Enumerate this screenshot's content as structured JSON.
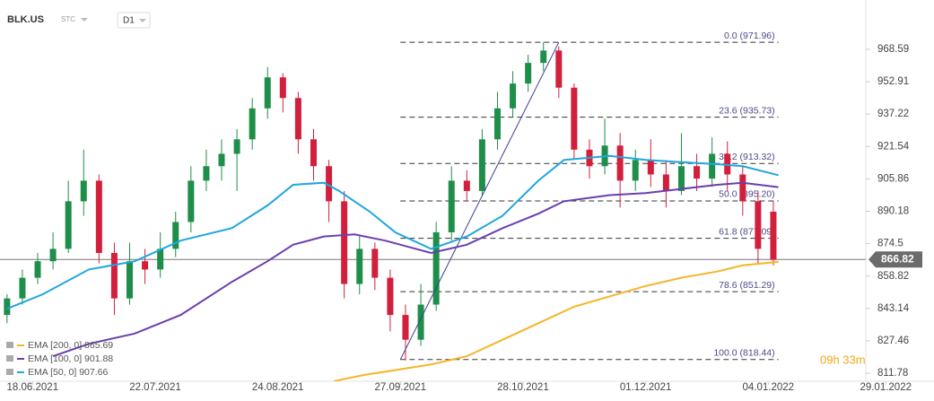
{
  "chart_data": {
    "type": "candlestick",
    "symbol": "BLK.US",
    "instrument_type": "STC",
    "timeframe": "D1",
    "timer": "09h 33m",
    "xlim": [
      -0.5,
      176
    ],
    "ylim": [
      807.9,
      988.1
    ],
    "yticks": [
      811.78,
      827.46,
      843.14,
      858.82,
      874.5,
      890.18,
      905.86,
      921.54,
      937.22,
      952.91,
      968.59
    ],
    "xticks": [
      {
        "value": 5,
        "label": "18.06.2021"
      },
      {
        "value": 29,
        "label": "22.07.2021"
      },
      {
        "value": 53,
        "label": "24.08.2021"
      },
      {
        "value": 77,
        "label": "27.09.2021"
      },
      {
        "value": 101,
        "label": "28.10.2021"
      },
      {
        "value": 125,
        "label": "01.12.2021"
      },
      {
        "value": 149,
        "label": "04.01.2022"
      },
      {
        "value": 172,
        "label": "29.01.2022"
      }
    ],
    "last_price": 866.82,
    "up_color": "#1e8e4a",
    "down_color": "#d21f3c",
    "candles": {
      "x": [
        0,
        3,
        6,
        9,
        12,
        15,
        18,
        21,
        24,
        27,
        30,
        33,
        36,
        39,
        42,
        45,
        48,
        51,
        54,
        57,
        60,
        63,
        66,
        69,
        72,
        75,
        78,
        81,
        84,
        87,
        90,
        93,
        96,
        99,
        102,
        105,
        108,
        111,
        114,
        117,
        120,
        123,
        126,
        129,
        132,
        135,
        138,
        141,
        144,
        147,
        150
      ],
      "open": [
        840,
        848,
        858,
        866,
        872,
        895,
        905,
        870,
        848,
        866,
        862,
        872,
        885,
        905,
        912,
        918,
        925,
        940,
        955,
        945,
        925,
        912,
        895,
        855,
        872,
        858,
        840,
        828,
        845,
        880,
        905,
        900,
        925,
        940,
        952,
        962,
        968,
        950,
        920,
        912,
        922,
        905,
        915,
        908,
        900,
        912,
        906,
        918,
        908,
        895,
        890
      ],
      "high": [
        850,
        862,
        870,
        880,
        905,
        920,
        908,
        875,
        875,
        872,
        880,
        890,
        912,
        920,
        925,
        930,
        945,
        960,
        957,
        948,
        930,
        915,
        900,
        878,
        875,
        862,
        845,
        855,
        885,
        912,
        910,
        930,
        948,
        958,
        966,
        972,
        970,
        952,
        925,
        935,
        928,
        920,
        925,
        915,
        928,
        918,
        926,
        924,
        912,
        900,
        895
      ],
      "low": [
        836,
        845,
        855,
        862,
        870,
        888,
        865,
        840,
        845,
        855,
        858,
        868,
        880,
        900,
        905,
        900,
        920,
        935,
        938,
        918,
        905,
        885,
        848,
        850,
        852,
        832,
        818,
        825,
        842,
        876,
        895,
        898,
        920,
        936,
        948,
        958,
        945,
        915,
        906,
        908,
        892,
        900,
        902,
        892,
        898,
        900,
        902,
        900,
        888,
        865,
        864
      ],
      "close": [
        848,
        858,
        866,
        872,
        895,
        905,
        870,
        848,
        866,
        862,
        872,
        885,
        905,
        912,
        918,
        925,
        940,
        955,
        945,
        925,
        912,
        895,
        855,
        872,
        858,
        840,
        828,
        845,
        880,
        905,
        900,
        925,
        940,
        952,
        962,
        968,
        950,
        920,
        912,
        922,
        905,
        915,
        908,
        900,
        912,
        906,
        918,
        908,
        895,
        872,
        866.82
      ]
    },
    "series": [
      {
        "name": "EMA [200, 0] 865.69",
        "color": "#f5b526",
        "x": [
          64,
          70,
          83,
          90,
          97,
          104,
          111,
          118,
          125,
          132,
          139,
          144,
          151
        ],
        "values": [
          808,
          811,
          816,
          820,
          828,
          836,
          844,
          849,
          854,
          858,
          861,
          864,
          865.69
        ]
      },
      {
        "name": "EMA [100, 0] 901.88",
        "color": "#6a3fb0",
        "x": [
          9,
          16,
          25,
          34,
          44,
          51,
          56,
          62,
          68,
          74,
          83,
          90,
          97,
          104,
          109,
          118,
          125,
          132,
          139,
          144,
          151
        ],
        "values": [
          820,
          826,
          831,
          840,
          856,
          866,
          874,
          878,
          879,
          876,
          870,
          874,
          882,
          889,
          895,
          898,
          899,
          901,
          903,
          904,
          901.88
        ]
      },
      {
        "name": "EMA [50, 0] 907.66",
        "color": "#1fa6e0",
        "x": [
          0,
          7,
          16,
          25,
          34,
          44,
          51,
          56,
          62,
          65,
          71,
          76,
          83,
          90,
          97,
          104,
          109,
          118,
          125,
          132,
          139,
          144,
          151
        ],
        "values": [
          843,
          850,
          862,
          866,
          876,
          882,
          893,
          903,
          904,
          900,
          890,
          880,
          872,
          878,
          888,
          905,
          915,
          917,
          915,
          914,
          913,
          912,
          907.66
        ]
      }
    ],
    "trendline": {
      "x": [
        77,
        108
      ],
      "values": [
        818.44,
        971.96
      ]
    },
    "fib_levels": [
      {
        "value": 971.96,
        "label": "0.0 (971.96)"
      },
      {
        "value": 935.73,
        "label": "23.6 (935.73)"
      },
      {
        "value": 913.32,
        "label": "38.2 (913.32)"
      },
      {
        "value": 895.2,
        "label": "50.0 (895.20)"
      },
      {
        "value": 877.09,
        "label": "61.8 (877.09)"
      },
      {
        "value": 851.29,
        "label": "78.6 (851.29)"
      },
      {
        "value": 818.44,
        "label": "100.0 (818.44)"
      }
    ],
    "fib_x": [
      77,
      151
    ]
  }
}
